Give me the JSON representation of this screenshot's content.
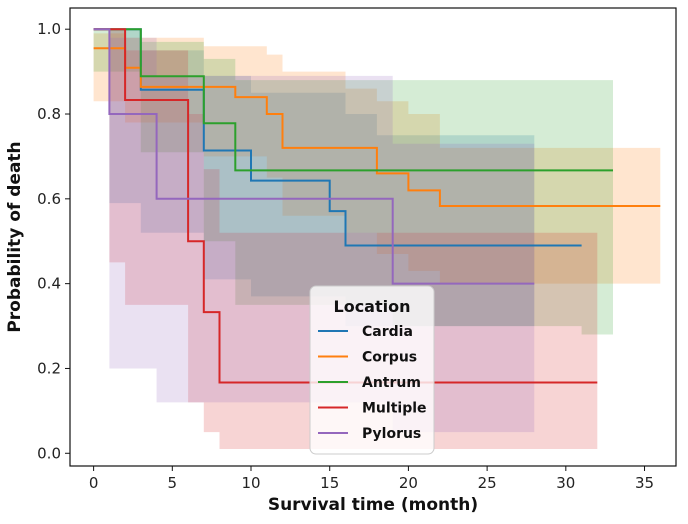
{
  "chart_data": {
    "type": "line",
    "subtype": "kaplan-meier step curves with confidence bands",
    "title": "",
    "xlabel": "Survival time (month)",
    "ylabel": "Probability of death",
    "xlim": [
      -1.5,
      37
    ],
    "ylim": [
      -0.03,
      1.05
    ],
    "xticks": [
      0,
      5,
      10,
      15,
      20,
      25,
      30,
      35
    ],
    "yticks": [
      0.0,
      0.2,
      0.4,
      0.6,
      0.8,
      1.0
    ],
    "xtick_labels": [
      "0",
      "5",
      "10",
      "15",
      "20",
      "25",
      "30",
      "35"
    ],
    "ytick_labels": [
      "0.0",
      "0.2",
      "0.4",
      "0.6",
      "0.8",
      "1.0"
    ],
    "legend": {
      "title": "Location",
      "placement": "bottom-center"
    },
    "series": [
      {
        "name": "Cardia",
        "color": "#1f77b4",
        "x": [
          0,
          3,
          7,
          10,
          15,
          16,
          31
        ],
        "y": [
          1.0,
          0.857,
          0.714,
          0.643,
          0.571,
          0.49,
          0.49
        ],
        "ci_x": [
          1,
          3,
          7,
          10,
          16,
          18,
          28
        ],
        "ci_lower": [
          0.59,
          0.52,
          0.41,
          0.37,
          0.3,
          0.3,
          0.3
        ],
        "ci_upper": [
          1.0,
          0.95,
          0.89,
          0.85,
          0.8,
          0.75,
          0.75
        ]
      },
      {
        "name": "Corpus",
        "color": "#ff7f0e",
        "x": [
          0,
          2,
          3,
          7,
          9,
          11,
          12,
          16,
          18,
          20,
          22,
          36
        ],
        "y": [
          0.955,
          0.909,
          0.864,
          0.864,
          0.84,
          0.8,
          0.72,
          0.72,
          0.66,
          0.62,
          0.583,
          0.583
        ],
        "ci_x": [
          0,
          2,
          7,
          11,
          12,
          16,
          18,
          20,
          22,
          36
        ],
        "ci_lower": [
          0.83,
          0.78,
          0.7,
          0.65,
          0.56,
          0.52,
          0.47,
          0.43,
          0.4,
          0.4
        ],
        "ci_upper": [
          0.99,
          0.98,
          0.96,
          0.94,
          0.9,
          0.86,
          0.83,
          0.8,
          0.72,
          0.72
        ]
      },
      {
        "name": "Antrum",
        "color": "#2ca02c",
        "x": [
          0,
          3,
          7,
          9,
          10,
          33
        ],
        "y": [
          1.0,
          0.889,
          0.778,
          0.667,
          0.667,
          0.667
        ],
        "ci_x": [
          0,
          3,
          7,
          9,
          19,
          31,
          33
        ],
        "ci_lower": [
          0.9,
          0.71,
          0.5,
          0.35,
          0.3,
          0.28,
          0.28
        ],
        "ci_upper": [
          1.0,
          0.97,
          0.93,
          0.88,
          0.88,
          0.88,
          0.88
        ]
      },
      {
        "name": "Multiple",
        "color": "#d62728",
        "x": [
          0,
          2,
          6,
          7,
          8,
          32
        ],
        "y": [
          1.0,
          0.833,
          0.5,
          0.333,
          0.167,
          0.167
        ],
        "ci_x": [
          1,
          2,
          6,
          7,
          8,
          32
        ],
        "ci_lower": [
          0.45,
          0.35,
          0.12,
          0.05,
          0.01,
          0.01
        ],
        "ci_upper": [
          1.0,
          0.95,
          0.8,
          0.67,
          0.52,
          0.52
        ]
      },
      {
        "name": "Pylorus",
        "color": "#9467bd",
        "x": [
          0,
          1,
          4,
          19,
          28
        ],
        "y": [
          1.0,
          0.8,
          0.6,
          0.4,
          0.4
        ],
        "ci_x": [
          1,
          4,
          19,
          28
        ],
        "ci_lower": [
          0.2,
          0.12,
          0.05,
          0.05
        ],
        "ci_upper": [
          0.98,
          0.89,
          0.73,
          0.73
        ]
      }
    ]
  }
}
